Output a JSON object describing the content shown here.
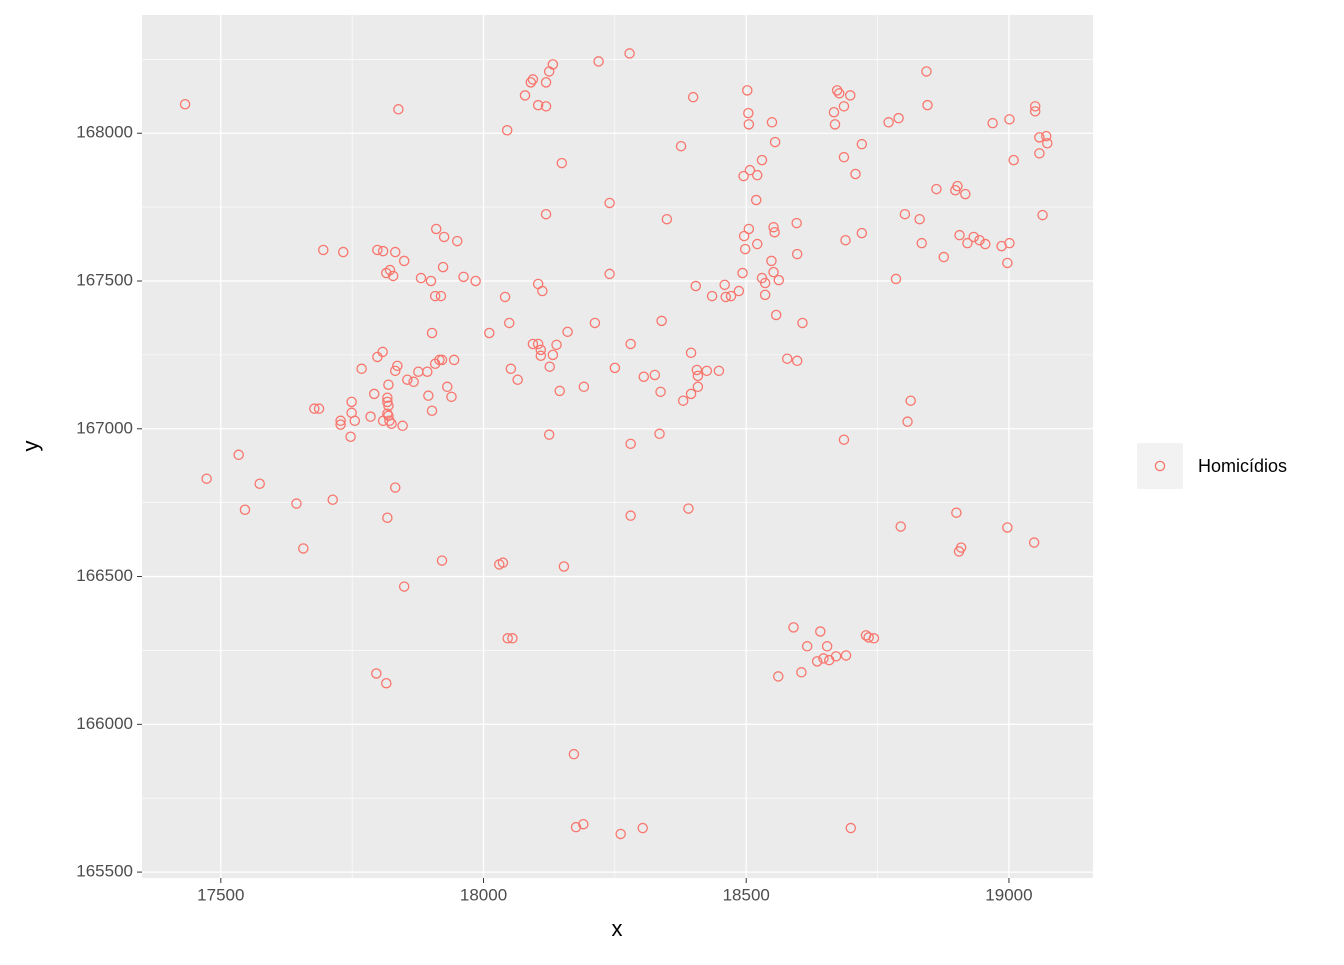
{
  "chart_data": {
    "type": "scatter",
    "x_label": "x",
    "y_label": "y",
    "xlim": [
      17350,
      19160
    ],
    "ylim": [
      165480,
      168400
    ],
    "xticks": [
      17500,
      18000,
      18500,
      19000
    ],
    "yticks": [
      165500,
      166000,
      166500,
      167000,
      167500,
      168000
    ],
    "x_minor_ticks": [
      17750,
      18250,
      18750
    ],
    "y_minor_ticks": [
      165750,
      166250,
      166750,
      167250,
      167750,
      168250
    ],
    "grid": true,
    "legend": "right",
    "series": [
      {
        "name": "Homicídios",
        "color": "#F8766D",
        "x": [
          17432,
          17473,
          17534,
          17546,
          17574,
          17644,
          17657,
          17713,
          17695,
          17733,
          17678,
          17687,
          17728,
          17728,
          17749,
          17749,
          17755,
          17747,
          17768,
          17785,
          17792,
          17798,
          17808,
          17798,
          17809,
          17815,
          17822,
          17832,
          17849,
          17828,
          17832,
          17836,
          17817,
          17817,
          17819,
          17817,
          17819,
          17821,
          17809,
          17825,
          17846,
          17819,
          17855,
          17867,
          17876,
          17893,
          17895,
          17902,
          17902,
          17908,
          17916,
          17921,
          17944,
          17931,
          17939,
          17881,
          17900,
          17908,
          17919,
          17923,
          17925,
          17910,
          17950,
          17962,
          17985,
          17838,
          17832,
          17817,
          17849,
          17921,
          17796,
          17815,
          18011,
          18045,
          18079,
          18090,
          18094,
          18119,
          18125,
          18132,
          18104,
          18119,
          18041,
          18049,
          18104,
          18112,
          18119,
          18149,
          18052,
          18065,
          18094,
          18104,
          18109,
          18109,
          18132,
          18126,
          18139,
          18160,
          18145,
          18125,
          18191,
          18212,
          18219,
          18278,
          18240,
          18240,
          18250,
          18280,
          18305,
          18326,
          18337,
          18339,
          18349,
          18376,
          18399,
          18404,
          18395,
          18406,
          18408,
          18408,
          18395,
          18380,
          18425,
          18435,
          18448,
          18461,
          18459,
          18471,
          18486,
          18493,
          18495,
          18502,
          18504,
          18505,
          18507,
          18521,
          18519,
          18496,
          18498,
          18505,
          18521,
          18530,
          18549,
          18555,
          18530,
          18536,
          18548,
          18552,
          18536,
          18562,
          18552,
          18554,
          18596,
          18597,
          18557,
          18607,
          18578,
          18597,
          18669,
          18673,
          18677,
          18667,
          18686,
          18698,
          18686,
          18708,
          18720,
          18689,
          18720,
          18686,
          18771,
          18790,
          18785,
          18802,
          18830,
          18834,
          18843,
          18845,
          18862,
          18876,
          18898,
          18902,
          18906,
          18917,
          18921,
          18933,
          18944,
          18969,
          18955,
          18986,
          19001,
          18997,
          19001,
          19009,
          19050,
          19050,
          19058,
          19071,
          19073,
          19058,
          19064,
          18813,
          18807,
          18794,
          18900,
          18909,
          18905,
          18997,
          19048,
          18390,
          18280,
          18280,
          18335,
          18030,
          18037,
          18046,
          18055,
          18153,
          18172,
          18176,
          18190,
          18261,
          18303,
          18699,
          18561,
          18590,
          18605,
          18616,
          18635,
          18641,
          18647,
          18654,
          18658,
          18671,
          18690,
          18728,
          18733,
          18743
        ],
        "values": [
          168098,
          166831,
          166912,
          166726,
          166814,
          166747,
          166595,
          166760,
          167605,
          167598,
          167068,
          167068,
          167027,
          167014,
          167091,
          167054,
          167027,
          166973,
          167203,
          167041,
          167118,
          167243,
          167260,
          167605,
          167601,
          167527,
          167537,
          167598,
          167568,
          167517,
          167196,
          167213,
          167105,
          167091,
          167078,
          167051,
          167044,
          167027,
          167027,
          167017,
          167010,
          167149,
          167166,
          167159,
          167193,
          167193,
          167112,
          167061,
          167324,
          167220,
          167233,
          167233,
          167233,
          167142,
          167108,
          167510,
          167500,
          167449,
          167449,
          167547,
          167649,
          167676,
          167635,
          167514,
          167500,
          168081,
          166801,
          166699,
          166466,
          166554,
          166172,
          166139,
          167324,
          168010,
          168128,
          168172,
          168182,
          168172,
          168209,
          168233,
          168095,
          168091,
          167446,
          167358,
          167490,
          167466,
          167726,
          167899,
          167203,
          167166,
          167287,
          167287,
          167267,
          167247,
          167250,
          167210,
          167284,
          167328,
          167128,
          166980,
          167142,
          167358,
          168243,
          168270,
          167764,
          167524,
          167206,
          167287,
          167176,
          167182,
          167125,
          167365,
          167709,
          167956,
          168122,
          167483,
          167257,
          167199,
          167179,
          167142,
          167118,
          167095,
          167196,
          167449,
          167196,
          167446,
          167487,
          167449,
          167466,
          167527,
          167855,
          168145,
          168068,
          168030,
          167875,
          167858,
          167774,
          167652,
          167608,
          167676,
          167625,
          167909,
          168037,
          167970,
          167510,
          167493,
          167568,
          167530,
          167453,
          167503,
          167682,
          167665,
          167696,
          167591,
          167385,
          167358,
          167237,
          167230,
          168030,
          168145,
          168135,
          168071,
          168091,
          168128,
          167919,
          167862,
          167963,
          167638,
          167662,
          166963,
          168037,
          168051,
          167507,
          167726,
          167709,
          167628,
          168209,
          168095,
          167811,
          167581,
          167807,
          167821,
          167655,
          167794,
          167628,
          167649,
          167638,
          168034,
          167625,
          167618,
          167628,
          167561,
          168047,
          167909,
          168091,
          168074,
          167986,
          167990,
          167966,
          167932,
          167723,
          167095,
          167024,
          166669,
          166716,
          166598,
          166585,
          166666,
          166615,
          166730,
          166706,
          166949,
          166983,
          166541,
          166547,
          166291,
          166291,
          166534,
          165899,
          165652,
          165662,
          165629,
          165649,
          165649,
          166162,
          166328,
          166176,
          166264,
          166213,
          166314,
          166223,
          166264,
          166217,
          166230,
          166233,
          166301,
          166294,
          166291
        ]
      }
    ]
  }
}
